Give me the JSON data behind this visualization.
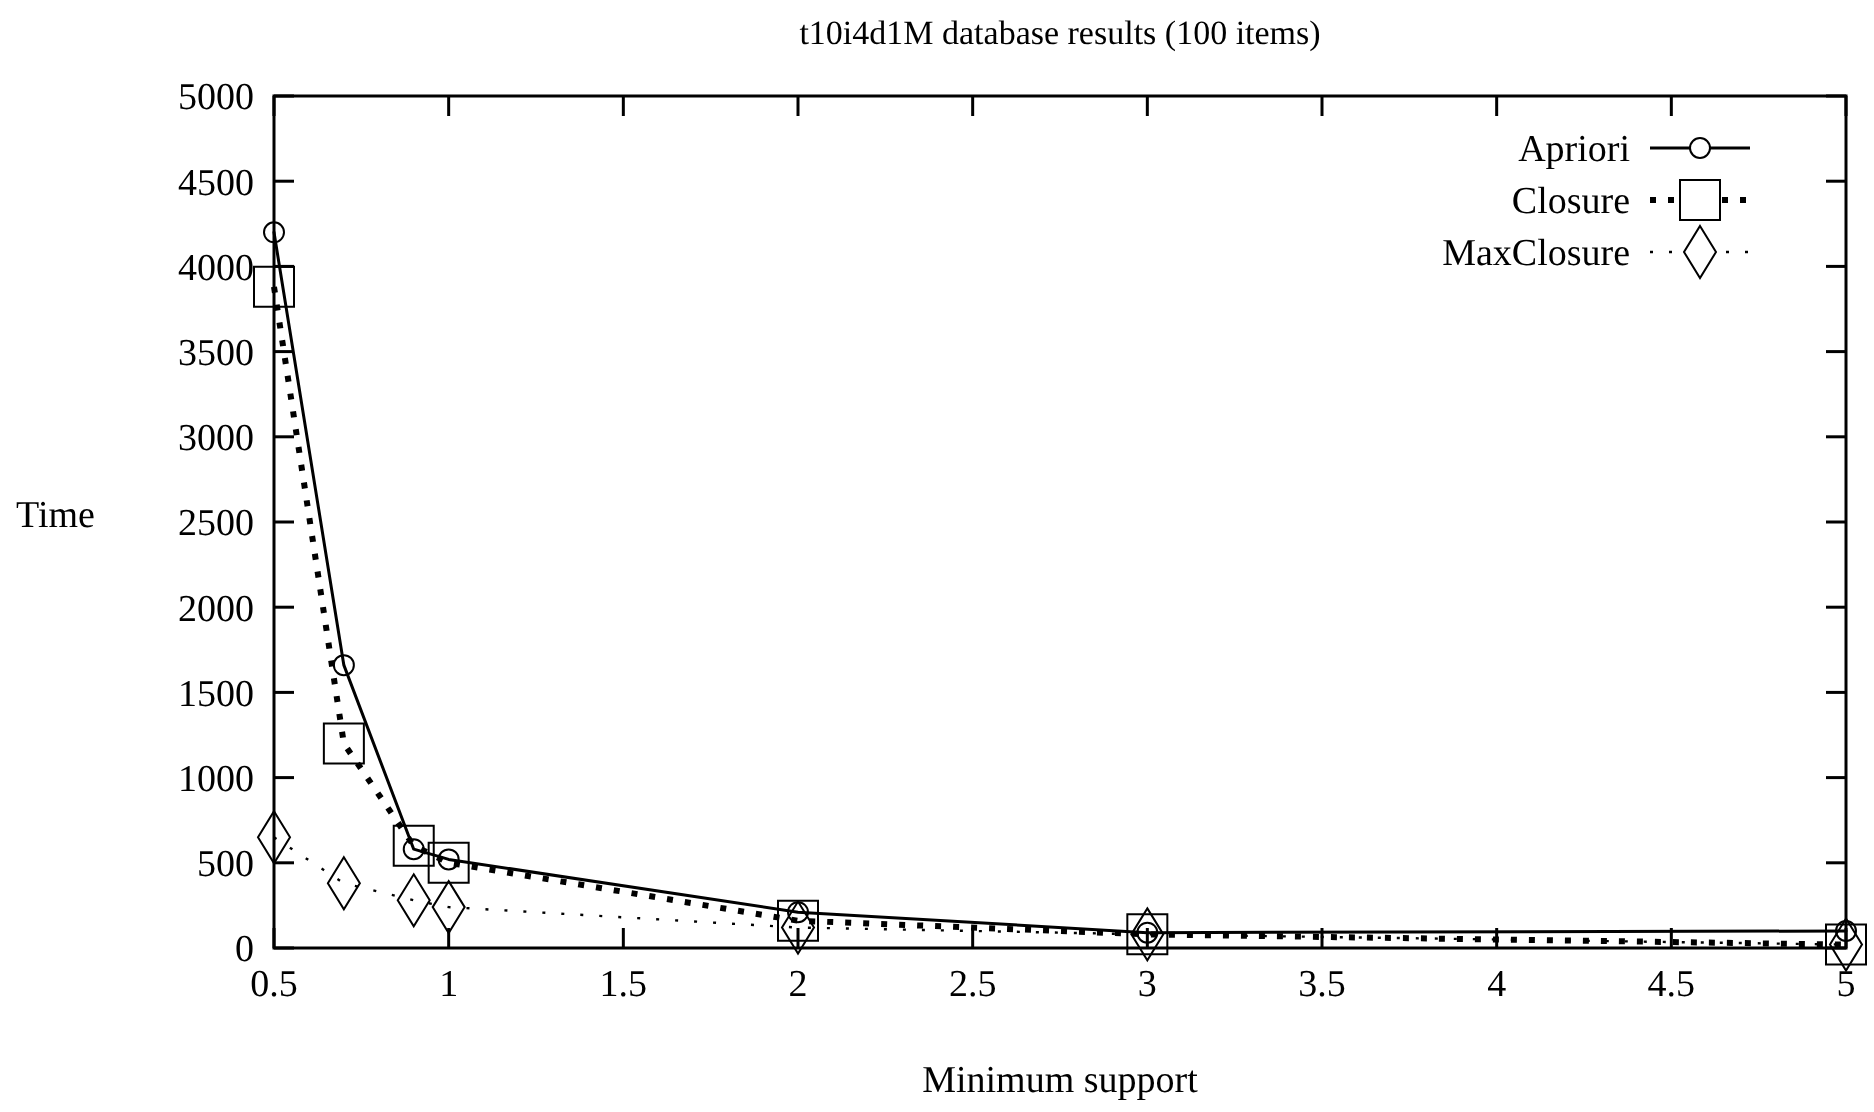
{
  "chart_data": {
    "type": "line",
    "title": "t10i4d1M database results (100 items)",
    "xlabel": "Minimum support",
    "ylabel": "Time",
    "x": [
      0.5,
      0.7,
      0.9,
      1,
      2,
      3,
      5
    ],
    "series": [
      {
        "name": "Apriori",
        "color": "#000000",
        "marker": "circle",
        "line_style": "solid",
        "values": [
          4200,
          1660,
          580,
          520,
          210,
          90,
          100
        ]
      },
      {
        "name": "Closure",
        "color": "#000000",
        "marker": "square",
        "line_style": "dotted",
        "values": [
          3880,
          1200,
          600,
          500,
          160,
          80,
          20
        ]
      },
      {
        "name": "MaxClosure",
        "color": "#000000",
        "marker": "diamond",
        "line_style": "dotted",
        "values": [
          650,
          380,
          280,
          240,
          120,
          80,
          20
        ]
      }
    ],
    "xlim": [
      0.5,
      5
    ],
    "xticks": [
      0.5,
      1,
      1.5,
      2,
      2.5,
      3,
      3.5,
      4,
      4.5,
      5
    ],
    "ylim": [
      0,
      5000
    ],
    "yticks": [
      0,
      500,
      1000,
      1500,
      2000,
      2500,
      3000,
      3500,
      4000,
      4500,
      5000
    ],
    "grid": false,
    "legend": "top right"
  }
}
